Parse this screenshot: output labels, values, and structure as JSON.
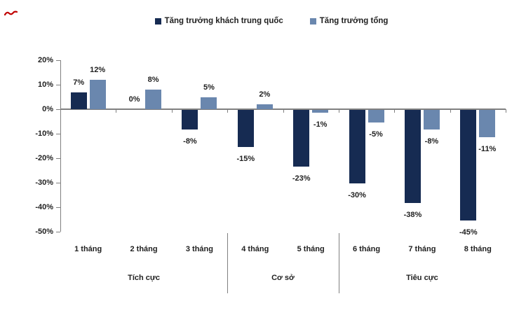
{
  "decorations": {
    "red_mark_color": "#c00000"
  },
  "chart_data": {
    "type": "bar",
    "title": "",
    "categories": [
      "1 tháng",
      "2 tháng",
      "3 tháng",
      "4 tháng",
      "5 tháng",
      "6 tháng",
      "7 tháng",
      "8 tháng"
    ],
    "series": [
      {
        "name": "Tăng trưởng khách trung quốc",
        "color": "#162b52",
        "values": [
          7,
          0,
          -8,
          -15,
          -23,
          -30,
          -38,
          -45
        ],
        "labels": [
          "7%",
          "0%",
          "-8%",
          "-15%",
          "-23%",
          "-30%",
          "-38%",
          "-45%"
        ]
      },
      {
        "name": "Tăng trưởng tổng",
        "color": "#6a87ae",
        "values": [
          12,
          8,
          5,
          2,
          -1,
          -5,
          -8,
          -11
        ],
        "labels": [
          "12%",
          "8%",
          "5%",
          "2%",
          "-1%",
          "-5%",
          "-8%",
          "-11%"
        ]
      }
    ],
    "groups": [
      {
        "label": "Tích cực",
        "from": 0,
        "to": 2
      },
      {
        "label": "Cơ sở",
        "from": 3,
        "to": 4
      },
      {
        "label": "Tiêu cực",
        "from": 5,
        "to": 7
      }
    ],
    "y_axis": {
      "ticks": [
        20,
        10,
        0,
        -10,
        -20,
        -30,
        -40,
        -50
      ],
      "tick_labels": [
        "20%",
        "10%",
        "0%",
        "-10%",
        "-20%",
        "-30%",
        "-40%",
        "-50%"
      ],
      "ylim": [
        -50,
        20
      ]
    },
    "legend_position": "top",
    "grid": false,
    "axis_color": "#808080",
    "text_color": "#1f1f1f"
  }
}
